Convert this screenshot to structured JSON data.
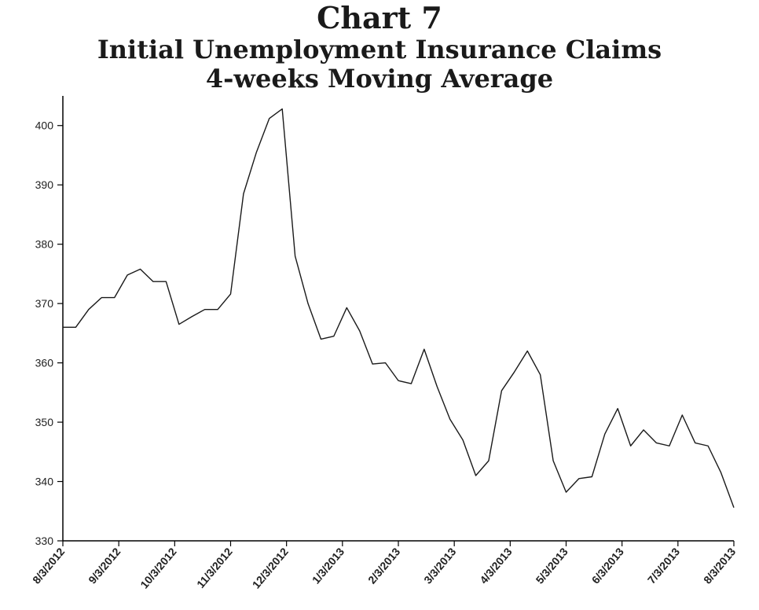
{
  "chart_data": {
    "type": "line",
    "title": "Chart 7",
    "subtitle": "Initial Unemployment Insurance Claims",
    "subtitle2": "4-weeks Moving Average",
    "xlabel": "",
    "ylabel": "",
    "ylim": [
      330,
      405
    ],
    "yticks": [
      330,
      340,
      350,
      360,
      370,
      380,
      390,
      400
    ],
    "xtick_labels": [
      "8/3/2012",
      "9/3/2012",
      "10/3/2012",
      "11/3/2012",
      "12/3/2012",
      "1/3/2013",
      "2/3/2013",
      "3/3/2013",
      "4/3/2013",
      "5/3/2013",
      "6/3/2013",
      "7/3/2013",
      "8/3/2013"
    ],
    "grid": false,
    "line_color": "#1a1a1a",
    "series": [
      {
        "values": [
          366,
          366,
          369,
          371,
          371,
          374.8,
          375.8,
          373.7,
          373.7,
          366.5,
          367.8,
          369,
          369,
          371.6,
          388.5,
          395.5,
          401.2,
          402.8,
          378,
          370,
          364,
          364.5,
          369.3,
          365.4,
          359.8,
          360,
          357,
          356.5,
          362.3,
          356,
          350.5,
          347,
          341,
          343.5,
          355.3,
          358.5,
          362,
          358,
          343.5,
          338.2,
          340.5,
          340.8,
          348,
          352.3,
          346,
          348.7,
          346.5,
          346,
          351.2,
          346.5,
          346,
          341.5,
          335.6
        ]
      }
    ]
  }
}
